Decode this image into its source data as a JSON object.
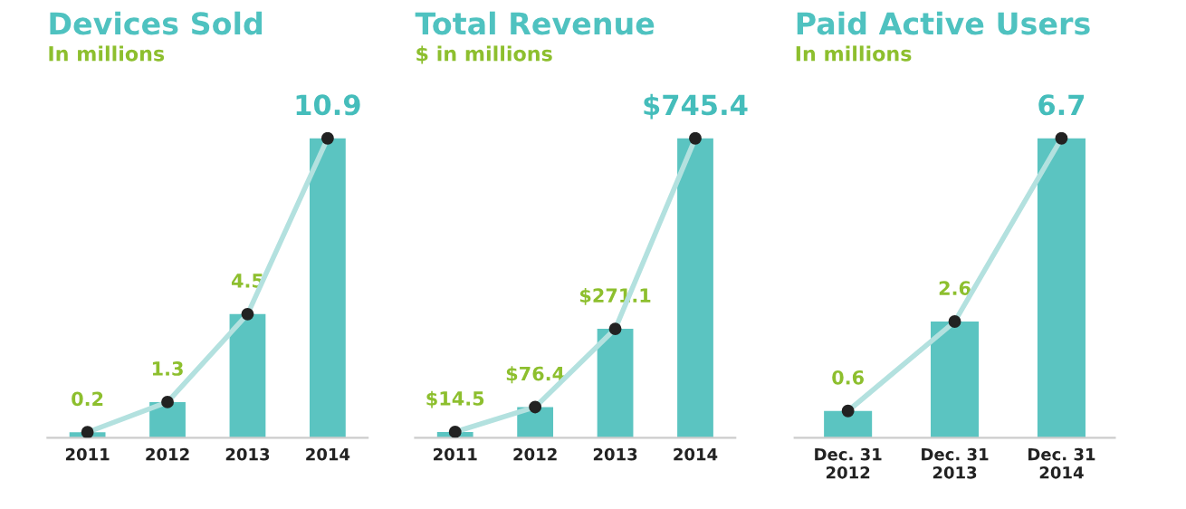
{
  "chart_data": [
    {
      "type": "bar",
      "title": "Devices Sold",
      "subtitle": "In millions",
      "categories": [
        "2011",
        "2012",
        "2013",
        "2014"
      ],
      "tick_labels": "x",
      "grid": false,
      "legend": false,
      "series": [
        {
          "color": "#5bc4c1",
          "values": [
            0.2,
            1.3,
            4.5,
            10.9
          ],
          "value_labels": [
            "0.2",
            "1.3",
            "4.5",
            "10.9"
          ]
        },
        {
          "type": "line",
          "color": "#b3e1df",
          "marker": "circle",
          "values": [
            0.2,
            1.3,
            4.5,
            10.9
          ]
        }
      ]
    },
    {
      "type": "bar",
      "title": "Total Revenue",
      "subtitle": "$ in millions",
      "categories": [
        "2011",
        "2012",
        "2013",
        "2014"
      ],
      "tick_labels": "x",
      "grid": false,
      "legend": false,
      "series": [
        {
          "color": "#5bc4c1",
          "values": [
            14.5,
            76.4,
            271.1,
            745.4
          ],
          "value_labels": [
            "$14.5",
            "$76.4",
            "$271.1",
            "$745.4"
          ]
        },
        {
          "type": "line",
          "color": "#b3e1df",
          "marker": "circle",
          "values": [
            14.5,
            76.4,
            271.1,
            745.4
          ]
        }
      ]
    },
    {
      "type": "bar",
      "title": "Paid Active Users",
      "subtitle": "In millions",
      "categories": [
        "Dec. 31\n2012",
        "Dec. 31\n2013",
        "Dec. 31\n2014"
      ],
      "tick_labels": "x",
      "grid": false,
      "legend": false,
      "series": [
        {
          "color": "#5bc4c1",
          "values": [
            0.6,
            2.6,
            6.7
          ],
          "value_labels": [
            "0.6",
            "2.6",
            "6.7"
          ]
        },
        {
          "type": "line",
          "color": "#b3e1df",
          "marker": "circle",
          "values": [
            0.6,
            2.6,
            6.7
          ]
        }
      ]
    }
  ]
}
